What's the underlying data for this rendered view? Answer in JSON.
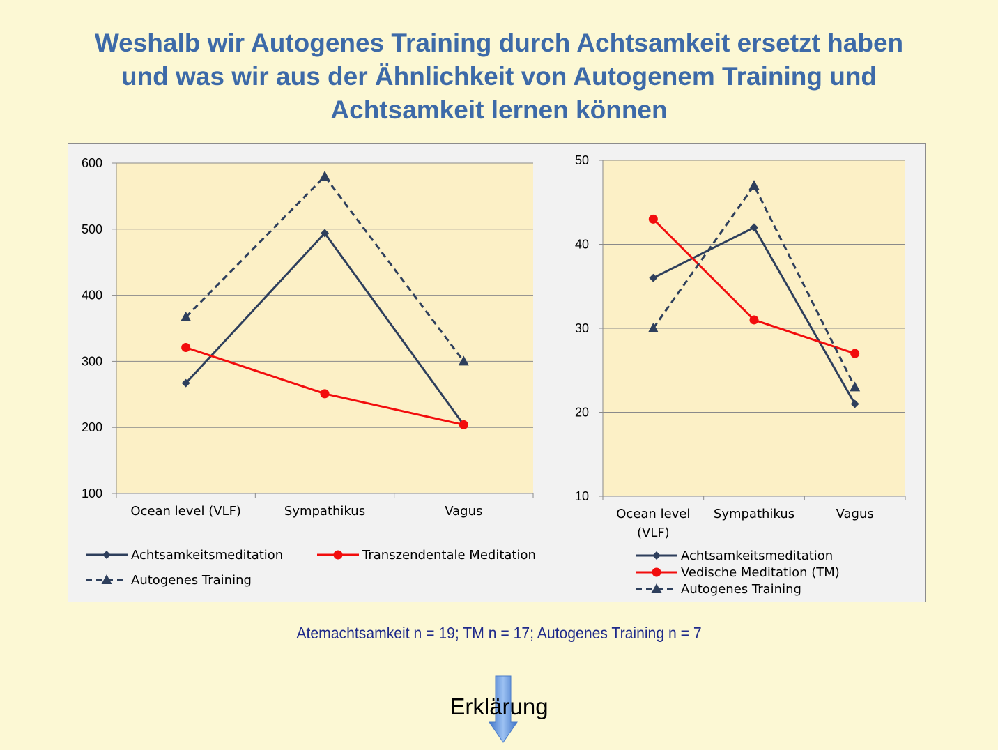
{
  "title": {
    "line1": "Weshalb wir Autogenes Training durch Achtsamkeit ersetzt haben",
    "line2": "und was wir aus der Ähnlichkeit von Autogenem Training und",
    "line3": "Achtsamkeit lernen können"
  },
  "colors": {
    "navy": "#2e3f5c",
    "red": "#f20d0d",
    "plot_bg": "#fcf0c6",
    "grid": "#8a8a8a",
    "title": "#3d6aa8",
    "note": "#1f2a8a",
    "arrow": "#5b8fd9"
  },
  "chart_data": [
    {
      "type": "line",
      "categories": [
        "Ocean level (VLF)",
        "Sympathikus",
        "Vagus"
      ],
      "ylim": [
        100,
        600
      ],
      "yticks": [
        100,
        200,
        300,
        400,
        500,
        600
      ],
      "grid": true,
      "legend": "bottom",
      "series": [
        {
          "name": "Achtsamkeitsmeditation",
          "values": [
            267,
            494,
            204
          ],
          "color": "#2e3f5c",
          "style": "solid",
          "marker": "diamond"
        },
        {
          "name": "Transzendentale Meditation",
          "values": [
            321,
            251,
            204
          ],
          "color": "#f20d0d",
          "style": "solid",
          "marker": "circle"
        },
        {
          "name": "Autogenes Training",
          "values": [
            367,
            580,
            300
          ],
          "color": "#2e3f5c",
          "style": "dashed",
          "marker": "triangle"
        }
      ]
    },
    {
      "type": "line",
      "categories": [
        "Ocean level (VLF)",
        "Sympathikus",
        "Vagus"
      ],
      "ylim": [
        10,
        50
      ],
      "yticks": [
        10,
        20,
        30,
        40,
        50
      ],
      "grid": true,
      "legend": "bottom",
      "series": [
        {
          "name": "Achtsamkeitsmeditation",
          "values": [
            36,
            42,
            21
          ],
          "color": "#2e3f5c",
          "style": "solid",
          "marker": "diamond"
        },
        {
          "name": "Vedische Meditation (TM)",
          "values": [
            43,
            31,
            27
          ],
          "color": "#f20d0d",
          "style": "solid",
          "marker": "circle"
        },
        {
          "name": "Autogenes Training",
          "values": [
            30,
            47,
            23
          ],
          "color": "#2e3f5c",
          "style": "dashed",
          "marker": "triangle"
        }
      ]
    }
  ],
  "note": "Atemachtsamkeit n = 19; TM n = 17; Autogenes Training n = 7",
  "explain_label": "Erklärung"
}
